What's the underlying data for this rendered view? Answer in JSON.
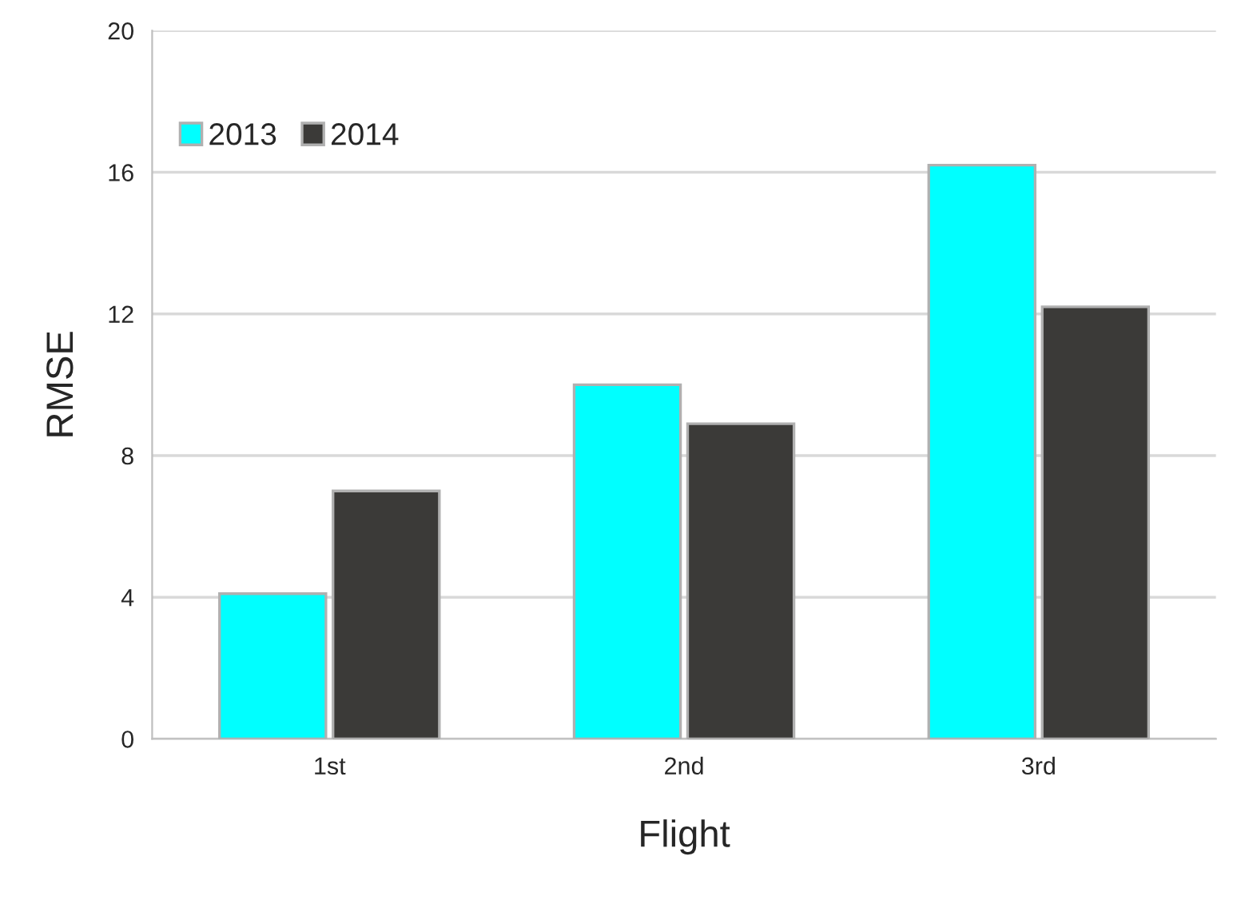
{
  "chart_data": {
    "type": "bar",
    "xlabel": "Flight",
    "ylabel": "RMSE",
    "categories": [
      "1st",
      "2nd",
      "3rd"
    ],
    "series": [
      {
        "name": "2013",
        "color": "#00ffff",
        "values": [
          4.1,
          10.0,
          16.2
        ]
      },
      {
        "name": "2014",
        "color": "#3b3a38",
        "values": [
          7.0,
          8.9,
          12.2
        ]
      }
    ],
    "ylim": [
      0,
      20
    ],
    "yticks": [
      0,
      4,
      8,
      12,
      16,
      20
    ],
    "grid": "y",
    "legend": "top left"
  }
}
